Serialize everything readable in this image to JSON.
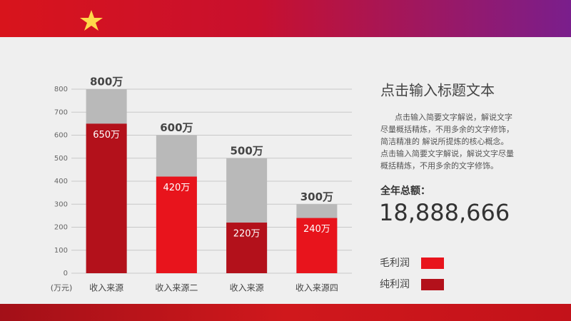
{
  "chart_data": {
    "type": "bar",
    "y_unit": "(万元)",
    "categories": [
      "收入来源",
      "收入来源二",
      "收入来源",
      "收入来源四"
    ],
    "series": [
      {
        "values": [
          800,
          600,
          500,
          300
        ],
        "value_labels": [
          "800万",
          "600万",
          "500万",
          "300万"
        ],
        "color": "#b9b9b9"
      },
      {
        "values": [
          650,
          420,
          220,
          240
        ],
        "value_labels": [
          "650万",
          "420万",
          "220万",
          "240万"
        ],
        "colors": [
          "#b3111b",
          "#e8141c",
          "#b3111b",
          "#e8141c"
        ]
      }
    ],
    "legend": [
      {
        "name": "毛利润",
        "color": "#e8141c"
      },
      {
        "name": "纯利润",
        "color": "#b3111b"
      }
    ],
    "ylim": [
      0,
      800
    ],
    "yticks": [
      0,
      100,
      200,
      300,
      400,
      500,
      600,
      700,
      800
    ],
    "grid": true
  },
  "panel": {
    "title": "点击输入标题文本",
    "text_lines": [
      "点击输入简要文字解说，解说文字",
      "尽量概括精炼，不用多余的文字修饰，",
      "简洁精准的 解说所提炼的核心概念。",
      "点击输入简要文字解说，解说文字尽量",
      "概括精炼，不用多余的文字修饰。"
    ],
    "total_label": "全年总额：",
    "total_value": "18,888,666"
  }
}
